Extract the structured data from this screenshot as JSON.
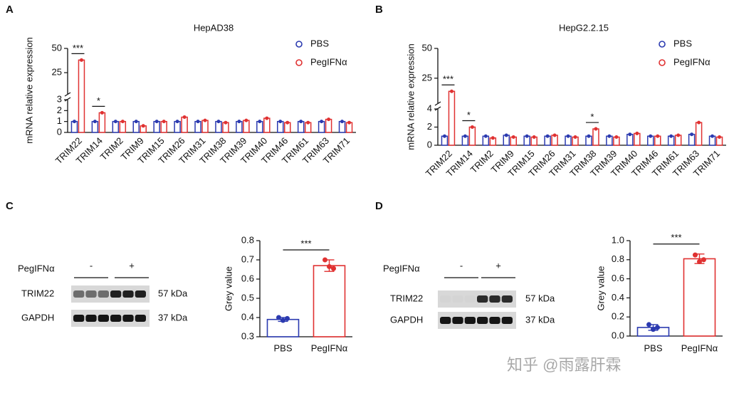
{
  "chart_data": [
    {
      "type": "bar",
      "panel": "A",
      "title": "HepAD38",
      "ylabel": "mRNA relative expression",
      "categories": [
        "TRIM22",
        "TRIM14",
        "TRIM2",
        "TRIM9",
        "TRIM15",
        "TRIM26",
        "TRIM31",
        "TRIM38",
        "TRIM39",
        "TRIM40",
        "TRIM46",
        "TRIM61",
        "TRIM63",
        "TRIM71"
      ],
      "series": [
        {
          "name": "PBS",
          "color": "#2b3ab0",
          "values": [
            1.0,
            1.0,
            1.0,
            1.0,
            1.0,
            1.0,
            1.0,
            1.0,
            1.0,
            1.0,
            1.0,
            1.0,
            1.0,
            1.0
          ]
        },
        {
          "name": "PegIFNα",
          "color": "#e03131",
          "values": [
            38,
            1.8,
            1.0,
            0.6,
            1.0,
            1.4,
            1.1,
            0.9,
            1.1,
            1.3,
            0.9,
            0.9,
            1.2,
            0.9
          ]
        }
      ],
      "significance": [
        "***",
        "*",
        null,
        null,
        null,
        null,
        null,
        null,
        null,
        null,
        null,
        null,
        null,
        null
      ],
      "ylim": [
        0,
        50
      ],
      "ybreak": 3,
      "yticks": [
        0,
        1,
        2,
        3,
        25,
        50
      ],
      "legend": "top-right"
    },
    {
      "type": "bar",
      "panel": "B",
      "title": "HepG2.2.15",
      "ylabel": "mRNA relative expression",
      "categories": [
        "TRIM22",
        "TRIM14",
        "TRIM2",
        "TRIM9",
        "TRIM15",
        "TRIM26",
        "TRIM31",
        "TRIM38",
        "TRIM39",
        "TRIM40",
        "TRIM46",
        "TRIM61",
        "TRIM63",
        "TRIM71"
      ],
      "series": [
        {
          "name": "PBS",
          "color": "#2b3ab0",
          "values": [
            1.0,
            1.0,
            1.0,
            1.1,
            1.0,
            1.0,
            1.0,
            1.0,
            1.0,
            1.2,
            1.0,
            1.0,
            1.2,
            1.0
          ]
        },
        {
          "name": "PegIFNα",
          "color": "#e03131",
          "values": [
            14,
            2.0,
            0.8,
            0.9,
            0.9,
            1.1,
            0.9,
            1.8,
            0.9,
            1.3,
            1.0,
            1.1,
            2.5,
            0.9
          ]
        }
      ],
      "significance": [
        "***",
        "*",
        null,
        null,
        null,
        null,
        null,
        "*",
        null,
        null,
        null,
        null,
        null,
        null
      ],
      "ylim": [
        0,
        50
      ],
      "ybreak": 4,
      "yticks": [
        0,
        2,
        4,
        25,
        50
      ],
      "legend": "top-right"
    },
    {
      "type": "bar",
      "panel": "C",
      "ylabel": "Grey value",
      "categories": [
        "PBS",
        "PegIFNα"
      ],
      "values": [
        0.39,
        0.67
      ],
      "errors": [
        0.01,
        0.03
      ],
      "points": [
        [
          0.4,
          0.385,
          0.395
        ],
        [
          0.7,
          0.665,
          0.655
        ]
      ],
      "colors": [
        "#2b3ab0",
        "#e03131"
      ],
      "significance": "***",
      "ylim": [
        0.3,
        0.8
      ],
      "yticks": [
        0.3,
        0.4,
        0.5,
        0.6,
        0.7,
        0.8
      ]
    },
    {
      "type": "bar",
      "panel": "D",
      "ylabel": "Grey value",
      "categories": [
        "PBS",
        "PegIFNα"
      ],
      "values": [
        0.09,
        0.81
      ],
      "errors": [
        0.03,
        0.05
      ],
      "points": [
        [
          0.12,
          0.07,
          0.09
        ],
        [
          0.85,
          0.78,
          0.8
        ]
      ],
      "colors": [
        "#2b3ab0",
        "#e03131"
      ],
      "significance": "***",
      "ylim": [
        0,
        1
      ],
      "yticks": [
        {
          "value": 0,
          "label": "0.0"
        },
        0.2,
        0.4,
        0.6,
        0.8,
        {
          "value": 1,
          "label": "1.0"
        }
      ]
    }
  ],
  "blots": [
    {
      "treatment": "PegIFNα",
      "minus": "-",
      "plus": "+",
      "rows": [
        {
          "name": "TRIM22",
          "size": "57 kDa"
        },
        {
          "name": "GAPDH",
          "size": "37 kDa"
        }
      ]
    },
    {
      "treatment": "PegIFNα",
      "minus": "-",
      "plus": "+",
      "rows": [
        {
          "name": "TRIM22",
          "size": "57 kDa"
        },
        {
          "name": "GAPDH",
          "size": "37 kDa"
        }
      ]
    }
  ],
  "watermark": "知乎 @雨露肝霖"
}
